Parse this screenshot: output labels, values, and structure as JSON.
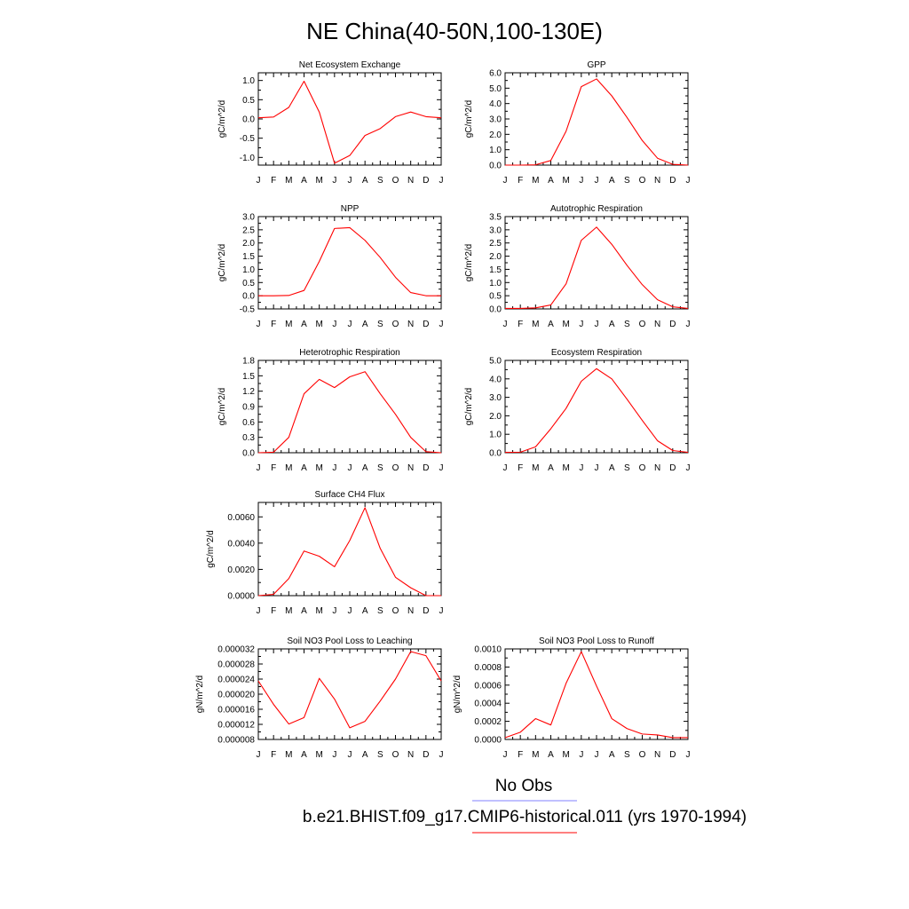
{
  "figure": {
    "title": "NE China(40-50N,100-130E)",
    "legend": [
      {
        "label": "No Obs",
        "color": "#8080ff"
      },
      {
        "label": "b.e21.BHIST.f09_g17.CMIP6-historical.011 (yrs 1970-1994)",
        "color": "#ff0000"
      }
    ],
    "line_color": "#ff0000"
  },
  "chart_data": [
    {
      "type": "line",
      "title": "Net Ecosystem Exchange",
      "ylabel": "gC/m^2/d",
      "categories": [
        "J",
        "F",
        "M",
        "A",
        "M",
        "J",
        "J",
        "A",
        "S",
        "O",
        "N",
        "D",
        "J"
      ],
      "ylim": [
        -1.2,
        1.2
      ],
      "yticks": [
        -1.0,
        -0.5,
        0.0,
        0.5,
        1.0
      ],
      "ytick_labels": [
        "-1.0",
        "-0.5",
        "0.0",
        "0.5",
        "1.0"
      ],
      "series": [
        {
          "values": [
            0.03,
            0.05,
            0.3,
            0.98,
            0.18,
            -1.15,
            -0.95,
            -0.43,
            -0.25,
            0.06,
            0.18,
            0.06,
            0.03
          ]
        }
      ]
    },
    {
      "type": "line",
      "title": "GPP",
      "ylabel": "gC/m^2/d",
      "categories": [
        "J",
        "F",
        "M",
        "A",
        "M",
        "J",
        "J",
        "A",
        "S",
        "O",
        "N",
        "D",
        "J"
      ],
      "ylim": [
        0,
        6
      ],
      "yticks": [
        0,
        1,
        2,
        3,
        4,
        5,
        6
      ],
      "ytick_labels": [
        "0.0",
        "1.0",
        "2.0",
        "3.0",
        "4.0",
        "5.0",
        "6.0"
      ],
      "series": [
        {
          "values": [
            0.0,
            0.0,
            0.02,
            0.3,
            2.2,
            5.1,
            5.6,
            4.5,
            3.1,
            1.6,
            0.45,
            0.05,
            0.0
          ]
        }
      ]
    },
    {
      "type": "line",
      "title": "NPP",
      "ylabel": "gC/m^2/d",
      "categories": [
        "J",
        "F",
        "M",
        "A",
        "M",
        "J",
        "J",
        "A",
        "S",
        "O",
        "N",
        "D",
        "J"
      ],
      "ylim": [
        -0.5,
        3.0
      ],
      "yticks": [
        -0.5,
        0,
        0.5,
        1.0,
        1.5,
        2.0,
        2.5,
        3.0
      ],
      "ytick_labels": [
        "-0.5",
        "0.0",
        "0.5",
        "1.0",
        "1.5",
        "2.0",
        "2.5",
        "3.0"
      ],
      "series": [
        {
          "values": [
            0.0,
            0.0,
            0.01,
            0.2,
            1.3,
            2.55,
            2.58,
            2.1,
            1.45,
            0.7,
            0.12,
            0.0,
            0.0
          ]
        }
      ]
    },
    {
      "type": "line",
      "title": "Autotrophic Respiration",
      "ylabel": "gC/m^2/d",
      "categories": [
        "J",
        "F",
        "M",
        "A",
        "M",
        "J",
        "J",
        "A",
        "S",
        "O",
        "N",
        "D",
        "J"
      ],
      "ylim": [
        0,
        3.5
      ],
      "yticks": [
        0,
        0.5,
        1.0,
        1.5,
        2.0,
        2.5,
        3.0,
        3.5
      ],
      "ytick_labels": [
        "0.0",
        "0.5",
        "1.0",
        "1.5",
        "2.0",
        "2.5",
        "3.0",
        "3.5"
      ],
      "series": [
        {
          "values": [
            0.02,
            0.02,
            0.04,
            0.15,
            0.95,
            2.6,
            3.1,
            2.45,
            1.65,
            0.92,
            0.35,
            0.08,
            0.02
          ]
        }
      ]
    },
    {
      "type": "line",
      "title": "Heterotrophic Respiration",
      "ylabel": "gC/m^2/d",
      "categories": [
        "J",
        "F",
        "M",
        "A",
        "M",
        "J",
        "J",
        "A",
        "S",
        "O",
        "N",
        "D",
        "J"
      ],
      "ylim": [
        0,
        1.8
      ],
      "yticks": [
        0,
        0.3,
        0.6,
        0.9,
        1.2,
        1.5,
        1.8
      ],
      "ytick_labels": [
        "0.0",
        "0.3",
        "0.6",
        "0.9",
        "1.2",
        "1.5",
        "1.8"
      ],
      "series": [
        {
          "values": [
            0.0,
            0.01,
            0.3,
            1.15,
            1.43,
            1.27,
            1.48,
            1.58,
            1.15,
            0.75,
            0.3,
            0.02,
            0.0
          ]
        }
      ]
    },
    {
      "type": "line",
      "title": "Ecosystem Respiration",
      "ylabel": "gC/m^2/d",
      "categories": [
        "J",
        "F",
        "M",
        "A",
        "M",
        "J",
        "J",
        "A",
        "S",
        "O",
        "N",
        "D",
        "J"
      ],
      "ylim": [
        0,
        5.0
      ],
      "yticks": [
        0,
        1,
        2,
        3,
        4,
        5
      ],
      "ytick_labels": [
        "0.0",
        "1.0",
        "2.0",
        "3.0",
        "4.0",
        "5.0"
      ],
      "series": [
        {
          "values": [
            0.02,
            0.03,
            0.32,
            1.3,
            2.4,
            3.87,
            4.55,
            4.0,
            2.9,
            1.75,
            0.65,
            0.12,
            0.02
          ]
        }
      ]
    },
    {
      "type": "line",
      "title": "Surface CH4 Flux",
      "ylabel": "gC/m^2/d",
      "categories": [
        "J",
        "F",
        "M",
        "A",
        "M",
        "J",
        "J",
        "A",
        "S",
        "O",
        "N",
        "D",
        "J"
      ],
      "ylim": [
        0,
        0.0071
      ],
      "yticks": [
        0,
        0.002,
        0.004,
        0.006
      ],
      "ytick_labels": [
        "0.0000",
        "0.0020",
        "0.0040",
        "0.0060"
      ],
      "series": [
        {
          "values": [
            0.0,
            0.0001,
            0.0013,
            0.0034,
            0.003,
            0.0022,
            0.0042,
            0.0067,
            0.0036,
            0.0014,
            0.0006,
            0.0,
            0.0
          ]
        }
      ]
    },
    {
      "type": "line",
      "title": "Soil NO3 Pool Loss to Leaching",
      "ylabel": "gN/m^2/d",
      "categories": [
        "J",
        "F",
        "M",
        "A",
        "M",
        "J",
        "J",
        "A",
        "S",
        "O",
        "N",
        "D",
        "J"
      ],
      "ylim": [
        8e-06,
        3.2e-05
      ],
      "yticks": [
        8e-06,
        1.2e-05,
        1.6e-05,
        2e-05,
        2.4e-05,
        2.8e-05,
        3.2e-05
      ],
      "ytick_labels": [
        "0.000008",
        "0.000012",
        "0.000016",
        "0.000020",
        "0.000024",
        "0.000028",
        "0.000032"
      ],
      "series": [
        {
          "values": [
            2.35e-05,
            1.73e-05,
            1.21e-05,
            1.38e-05,
            2.42e-05,
            1.87e-05,
            1.11e-05,
            1.28e-05,
            1.82e-05,
            2.4e-05,
            3.13e-05,
            3.02e-05,
            2.35e-05
          ]
        }
      ]
    },
    {
      "type": "line",
      "title": "Soil NO3 Pool Loss to Runoff",
      "ylabel": "gN/m^2/d",
      "categories": [
        "J",
        "F",
        "M",
        "A",
        "M",
        "J",
        "J",
        "A",
        "S",
        "O",
        "N",
        "D",
        "J"
      ],
      "ylim": [
        0,
        0.001
      ],
      "yticks": [
        0,
        0.0002,
        0.0004,
        0.0006,
        0.0008,
        0.001
      ],
      "ytick_labels": [
        "0.0000",
        "0.0002",
        "0.0004",
        "0.0006",
        "0.0008",
        "0.0010"
      ],
      "series": [
        {
          "values": [
            2e-05,
            8e-05,
            0.00023,
            0.00016,
            0.00062,
            0.00097,
            0.00059,
            0.00023,
            0.00012,
            6e-05,
            5e-05,
            2e-05,
            2e-05
          ]
        }
      ]
    }
  ]
}
